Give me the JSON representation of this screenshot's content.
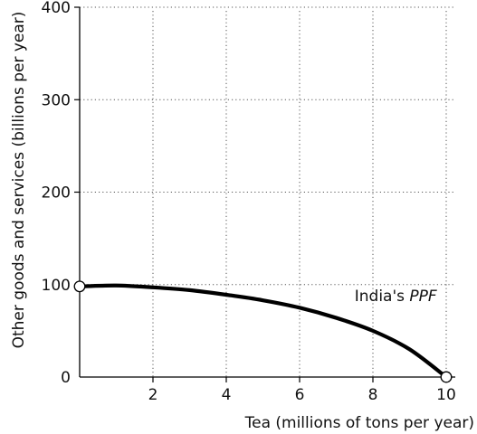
{
  "chart_data": {
    "type": "line",
    "title": "",
    "xlabel": "Tea (millions of tons per year)",
    "ylabel": "Other goods and services (billions per year)",
    "xlim": [
      0,
      10
    ],
    "ylim": [
      0,
      400
    ],
    "x_ticks": [
      0,
      2,
      4,
      6,
      8,
      10
    ],
    "x_tick_labels": [
      "2",
      "4",
      "6",
      "8",
      "10"
    ],
    "y_ticks": [
      0,
      100,
      200,
      300,
      400
    ],
    "y_tick_labels": [
      "0",
      "100",
      "200",
      "300",
      "400"
    ],
    "grid": true,
    "series": [
      {
        "name": "India's PPF",
        "color": "#000000",
        "x": [
          0,
          1,
          2,
          3,
          4,
          5,
          6,
          7,
          8,
          9,
          10
        ],
        "y": [
          98,
          99,
          97,
          94,
          89,
          83,
          75,
          64,
          50,
          30,
          0
        ]
      }
    ],
    "endpoints": [
      {
        "x": 0,
        "y": 98
      },
      {
        "x": 10,
        "y": 0
      }
    ],
    "annotation": {
      "text_prefix": "India's ",
      "text_emphasis": "PPF",
      "x": 7.5,
      "y": 82
    }
  }
}
